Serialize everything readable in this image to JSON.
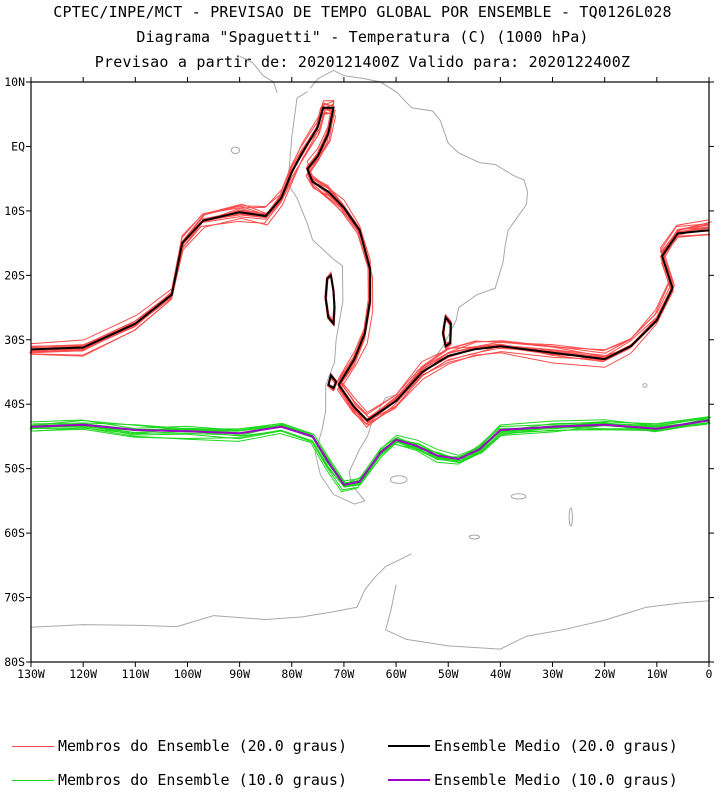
{
  "title": {
    "line1": "CPTEC/INPE/MCT - PREVISAO DE TEMPO GLOBAL POR ENSEMBLE - TQ0126L028",
    "line2": "Diagrama \"Spaguetti\" - Temperatura (C) (1000 hPa)",
    "line3": "Previsao a partir de: 2020121400Z  Valido para: 2020122400Z"
  },
  "map": {
    "lon_range": [
      -130,
      0
    ],
    "lat_range": [
      -80,
      10
    ],
    "lat_ticks": [
      {
        "value": 10,
        "label": "10N"
      },
      {
        "value": 0,
        "label": "EQ"
      },
      {
        "value": -10,
        "label": "10S"
      },
      {
        "value": -20,
        "label": "20S"
      },
      {
        "value": -30,
        "label": "30S"
      },
      {
        "value": -40,
        "label": "40S"
      },
      {
        "value": -50,
        "label": "50S"
      },
      {
        "value": -60,
        "label": "60S"
      },
      {
        "value": -70,
        "label": "70S"
      },
      {
        "value": -80,
        "label": "80S"
      }
    ],
    "lon_ticks": [
      {
        "value": -130,
        "label": "130W"
      },
      {
        "value": -120,
        "label": "120W"
      },
      {
        "value": -110,
        "label": "110W"
      },
      {
        "value": -100,
        "label": "100W"
      },
      {
        "value": -90,
        "label": "90W"
      },
      {
        "value": -80,
        "label": "80W"
      },
      {
        "value": -70,
        "label": "70W"
      },
      {
        "value": -60,
        "label": "60W"
      },
      {
        "value": -50,
        "label": "50W"
      },
      {
        "value": -40,
        "label": "40W"
      },
      {
        "value": -30,
        "label": "30W"
      },
      {
        "value": -20,
        "label": "20W"
      },
      {
        "value": -10,
        "label": "10W"
      },
      {
        "value": 0,
        "label": "0"
      }
    ],
    "colors": {
      "member_20": "#ff4b4b",
      "mean_20": "#000000",
      "member_10": "#1ed81e",
      "mean_10": "#a000c8",
      "coast": "#a8a8a8"
    },
    "isotherm_20_mean": [
      [
        -130,
        -31.5
      ],
      [
        -120,
        -31.2
      ],
      [
        -110,
        -27.5
      ],
      [
        -103,
        -23
      ],
      [
        -101,
        -15
      ],
      [
        -97,
        -11.5
      ],
      [
        -90,
        -10.2
      ],
      [
        -85,
        -10.8
      ],
      [
        -82,
        -8
      ],
      [
        -80,
        -4
      ],
      [
        -78,
        -1
      ],
      [
        -75,
        3
      ],
      [
        -74,
        6
      ],
      [
        -72,
        6
      ],
      [
        -73,
        2
      ],
      [
        -75,
        -1.5
      ],
      [
        -77,
        -3.5
      ],
      [
        -76,
        -5.5
      ],
      [
        -73,
        -7
      ],
      [
        -70,
        -9.5
      ],
      [
        -67,
        -13
      ],
      [
        -65,
        -19
      ],
      [
        -65,
        -24
      ],
      [
        -66,
        -29
      ],
      [
        -68,
        -33
      ],
      [
        -71,
        -37
      ],
      [
        -68,
        -40.5
      ],
      [
        -65.5,
        -42.5
      ],
      [
        -60,
        -39.5
      ],
      [
        -55,
        -35
      ],
      [
        -50,
        -32.5
      ],
      [
        -45,
        -31.5
      ],
      [
        -40,
        -31
      ],
      [
        -30,
        -32
      ],
      [
        -20,
        -33
      ],
      [
        -15,
        -31
      ],
      [
        -10,
        -27
      ],
      [
        -7,
        -22
      ],
      [
        -9,
        -17
      ],
      [
        -6,
        -13.5
      ],
      [
        0,
        -13
      ]
    ],
    "isotherm_10_mean": [
      [
        -130,
        -43.5
      ],
      [
        -120,
        -43.2
      ],
      [
        -110,
        -44
      ],
      [
        -100,
        -44.2
      ],
      [
        -90,
        -44.5
      ],
      [
        -82,
        -43.5
      ],
      [
        -76,
        -45
      ],
      [
        -73,
        -49
      ],
      [
        -70,
        -52.5
      ],
      [
        -67,
        -52
      ],
      [
        -63,
        -47.5
      ],
      [
        -60,
        -45.5
      ],
      [
        -56,
        -46.5
      ],
      [
        -52,
        -48
      ],
      [
        -48,
        -48.5
      ],
      [
        -44,
        -47
      ],
      [
        -40,
        -44
      ],
      [
        -30,
        -43.5
      ],
      [
        -20,
        -43.2
      ],
      [
        -10,
        -43.8
      ],
      [
        0,
        -42.5
      ]
    ],
    "mean_closed_20": [
      [
        [
          -72.5,
          -20
        ],
        [
          -72,
          -22.5
        ],
        [
          -71.8,
          -25
        ],
        [
          -72,
          -27.5
        ],
        [
          -73,
          -26.5
        ],
        [
          -73.5,
          -23.5
        ],
        [
          -73.2,
          -20.5
        ]
      ],
      [
        [
          -50.5,
          -26.5
        ],
        [
          -49.5,
          -27.5
        ],
        [
          -49.6,
          -30.5
        ],
        [
          -50.5,
          -31
        ],
        [
          -51,
          -29
        ]
      ],
      [
        [
          -72.5,
          -35.5
        ],
        [
          -71.5,
          -36.5
        ],
        [
          -72,
          -37.5
        ],
        [
          -73,
          -37
        ]
      ]
    ]
  },
  "legend": {
    "members_20": "Membros do Ensemble (20.0 graus)",
    "mean_20": "Ensemble Medio (20.0 graus)",
    "members_10": "Membros do Ensemble (10.0 graus)",
    "mean_10": "Ensemble Medio (10.0 graus)"
  }
}
